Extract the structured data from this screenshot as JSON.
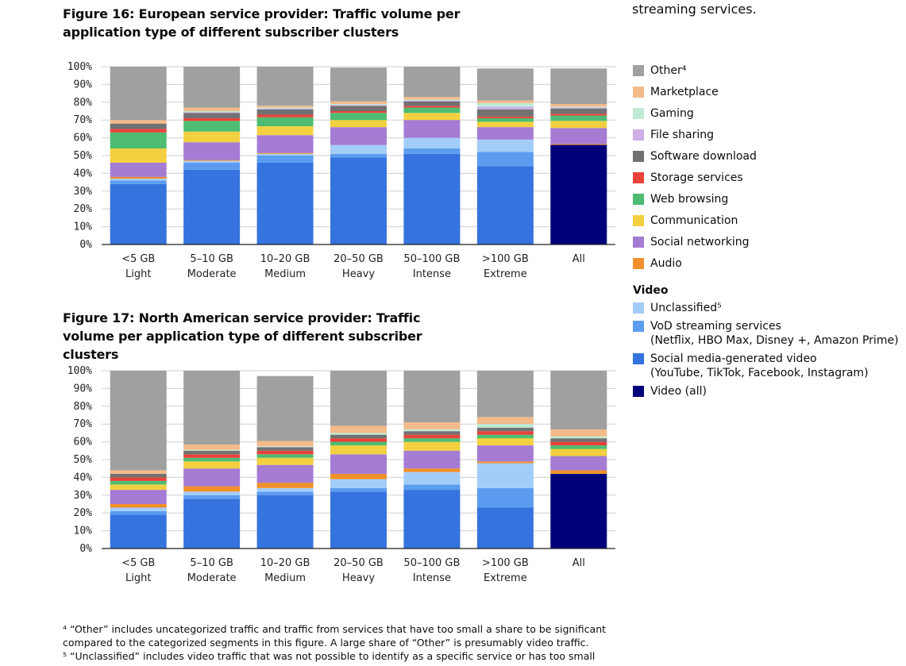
{
  "top_note": "streaming services.",
  "legend": {
    "items": [
      {
        "label": "Other⁴",
        "color": "#a0a0a0"
      },
      {
        "label": "Marketplace",
        "color": "#f3bb8a"
      },
      {
        "label": "Gaming",
        "color": "#bdebd6"
      },
      {
        "label": "File sharing",
        "color": "#cdaee6"
      },
      {
        "label": "Software download",
        "color": "#717171"
      },
      {
        "label": "Storage services",
        "color": "#e8423a"
      },
      {
        "label": "Web browsing",
        "color": "#4ebc72"
      },
      {
        "label": "Communication",
        "color": "#f2d040"
      },
      {
        "label": "Social networking",
        "color": "#a57bd3"
      },
      {
        "label": "Audio",
        "color": "#f0902a"
      }
    ],
    "video_heading": "Video",
    "video_items": [
      {
        "label": "Unclassified⁵",
        "color": "#a3cdf9"
      },
      {
        "label": "VoD streaming services",
        "sub": "(Netflix, HBO Max, Disney +, Amazon Prime)",
        "color": "#5c9cf0"
      },
      {
        "label": "Social media-generated video",
        "sub": "(YouTube, TikTok, Facebook, Instagram)",
        "color": "#3573de"
      },
      {
        "label": "Video (all)",
        "color": "#00007a"
      }
    ]
  },
  "chart_data": [
    {
      "type": "bar",
      "stacked": true,
      "title": "Figure 16: European service provider: Traffic volume per application type of different subscriber clusters",
      "categories": [
        "<5 GB\nLight",
        "5–10 GB\nModerate",
        "10–20 GB\nMedium",
        "20–50 GB\nHeavy",
        "50–100 GB\nIntense",
        ">100 GB\nExtreme",
        "All"
      ],
      "ylim": [
        0,
        100
      ],
      "yticks": [
        "0%",
        "10%",
        "20%",
        "30%",
        "40%",
        "50%",
        "60%",
        "70%",
        "80%",
        "90%",
        "100%"
      ],
      "grid": true,
      "series": [
        {
          "name": "Social media-generated video",
          "values": [
            34,
            42,
            46,
            49,
            51,
            44,
            0
          ]
        },
        {
          "name": "VoD streaming services",
          "values": [
            2,
            4,
            4,
            2,
            3,
            8,
            0
          ]
        },
        {
          "name": "Unclassified⁵",
          "values": [
            1,
            1,
            1,
            5,
            6,
            7,
            0
          ]
        },
        {
          "name": "Video (all)",
          "values": [
            0,
            0,
            0,
            0,
            0,
            0,
            56
          ]
        },
        {
          "name": "Audio",
          "values": [
            1,
            0.5,
            0.5,
            0,
            0,
            0,
            0.5
          ]
        },
        {
          "name": "Social networking",
          "values": [
            8,
            10,
            10,
            10,
            10,
            7,
            9
          ]
        },
        {
          "name": "Communication",
          "values": [
            8,
            6,
            5,
            4,
            4,
            3,
            4
          ]
        },
        {
          "name": "Web browsing",
          "values": [
            9,
            6,
            5,
            4,
            3,
            2,
            3
          ]
        },
        {
          "name": "Storage services",
          "values": [
            2,
            1.5,
            1.5,
            1,
            1,
            1,
            1
          ]
        },
        {
          "name": "Software download",
          "values": [
            3,
            3,
            3,
            3,
            2.5,
            4,
            3
          ]
        },
        {
          "name": "File sharing",
          "values": [
            0,
            0.5,
            0.5,
            0.5,
            0.5,
            1.5,
            0.5
          ]
        },
        {
          "name": "Gaming",
          "values": [
            0,
            0.5,
            0.5,
            0.5,
            0.5,
            2,
            0.5
          ]
        },
        {
          "name": "Marketplace",
          "values": [
            2,
            2,
            1,
            1.5,
            1.5,
            1.5,
            1.5
          ]
        },
        {
          "name": "Other⁴",
          "values": [
            30,
            23,
            22,
            19,
            17,
            18,
            20
          ]
        }
      ]
    },
    {
      "type": "bar",
      "stacked": true,
      "title": "Figure 17: North American service provider: Traffic volume per application type of different subscriber clusters",
      "categories": [
        "<5 GB\nLight",
        "5–10 GB\nModerate",
        "10–20 GB\nMedium",
        "20–50 GB\nHeavy",
        "50–100 GB\nIntense",
        ">100 GB\nExtreme",
        "All"
      ],
      "ylim": [
        0,
        100
      ],
      "yticks": [
        "0%",
        "10%",
        "20%",
        "30%",
        "40%",
        "50%",
        "60%",
        "70%",
        "80%",
        "90%",
        "100%"
      ],
      "grid": true,
      "series": [
        {
          "name": "Social media-generated video",
          "values": [
            19,
            28,
            30,
            32,
            33,
            23,
            0
          ]
        },
        {
          "name": "VoD streaming services",
          "values": [
            2,
            2,
            2,
            2,
            3,
            11,
            0
          ]
        },
        {
          "name": "Unclassified⁵",
          "values": [
            2,
            2,
            2,
            5,
            7,
            14,
            0
          ]
        },
        {
          "name": "Video (all)",
          "values": [
            0,
            0,
            0,
            0,
            0,
            0,
            42
          ]
        },
        {
          "name": "Audio",
          "values": [
            2,
            3,
            3,
            3,
            2,
            1,
            2
          ]
        },
        {
          "name": "Social networking",
          "values": [
            8,
            10,
            10,
            11,
            10,
            9,
            8
          ]
        },
        {
          "name": "Communication",
          "values": [
            3,
            4,
            4,
            5,
            5,
            4,
            4
          ]
        },
        {
          "name": "Web browsing",
          "values": [
            2,
            2,
            2,
            2,
            2,
            2,
            2
          ]
        },
        {
          "name": "Storage services",
          "values": [
            2,
            2,
            2,
            2,
            2,
            2,
            2
          ]
        },
        {
          "name": "Software download",
          "values": [
            2,
            2,
            2,
            2,
            2,
            2,
            2
          ]
        },
        {
          "name": "File sharing",
          "values": [
            0,
            0,
            0,
            0,
            0,
            0,
            0
          ]
        },
        {
          "name": "Gaming",
          "values": [
            0,
            0.5,
            0.5,
            1,
            1,
            2,
            1
          ]
        },
        {
          "name": "Marketplace",
          "values": [
            2,
            3,
            3,
            4,
            4,
            4,
            4
          ]
        },
        {
          "name": "Other⁴",
          "values": [
            56,
            41.5,
            36.5,
            31,
            29,
            26,
            33
          ]
        }
      ]
    }
  ],
  "footnotes": [
    "⁴ “Other” includes uncategorized traffic and traffic from services that have too small a share to be significant compared to the categorized segments in this figure. A large share of “Other” is presumably video traffic.",
    "⁵ “Unclassified” includes video traffic that was not possible to identify as a specific service or has too small"
  ]
}
